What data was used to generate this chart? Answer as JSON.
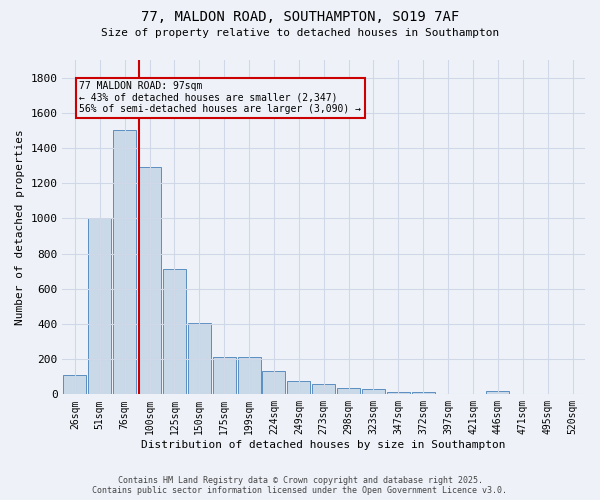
{
  "title_line1": "77, MALDON ROAD, SOUTHAMPTON, SO19 7AF",
  "title_line2": "Size of property relative to detached houses in Southampton",
  "xlabel": "Distribution of detached houses by size in Southampton",
  "ylabel": "Number of detached properties",
  "bar_labels": [
    "26sqm",
    "51sqm",
    "76sqm",
    "100sqm",
    "125sqm",
    "150sqm",
    "175sqm",
    "199sqm",
    "224sqm",
    "249sqm",
    "273sqm",
    "298sqm",
    "323sqm",
    "347sqm",
    "372sqm",
    "397sqm",
    "421sqm",
    "446sqm",
    "471sqm",
    "495sqm",
    "520sqm"
  ],
  "bar_values": [
    110,
    1000,
    1500,
    1290,
    710,
    405,
    215,
    215,
    135,
    75,
    60,
    38,
    30,
    15,
    15,
    0,
    0,
    18,
    0,
    0,
    0
  ],
  "bar_color": "#c9d9e8",
  "bar_edge_color": "#5a8fc0",
  "grid_color": "#d0d8e8",
  "background_color": "#eef2f8",
  "red_line_index": 2.575,
  "annotation_text": "77 MALDON ROAD: 97sqm\n← 43% of detached houses are smaller (2,347)\n56% of semi-detached houses are larger (3,090) →",
  "annotation_box_edge": "#cc0000",
  "ylim": [
    0,
    1900
  ],
  "yticks": [
    0,
    200,
    400,
    600,
    800,
    1000,
    1200,
    1400,
    1600,
    1800
  ],
  "footer_line1": "Contains HM Land Registry data © Crown copyright and database right 2025.",
  "footer_line2": "Contains public sector information licensed under the Open Government Licence v3.0."
}
